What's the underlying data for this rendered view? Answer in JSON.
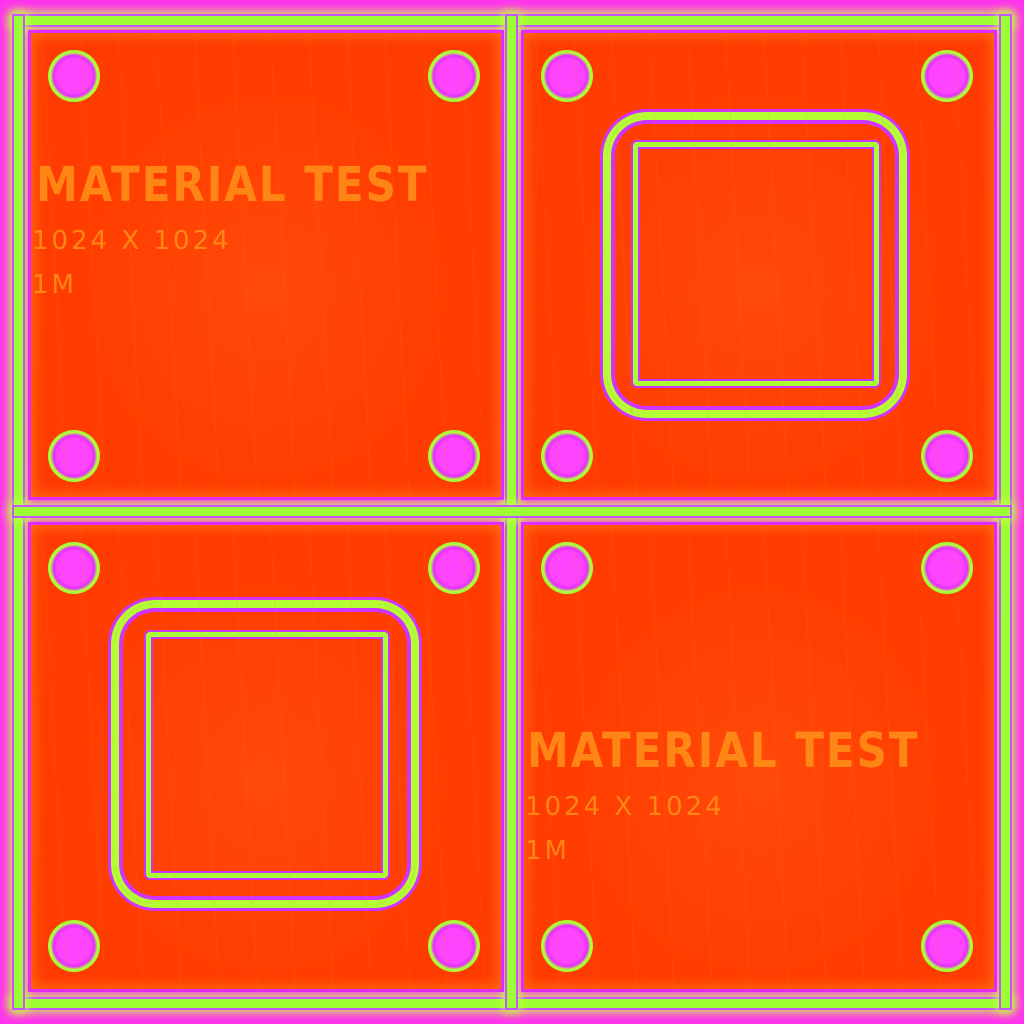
{
  "texture": {
    "labels": [
      {
        "title": "MATERIAL TEST",
        "size": "1024 X 1024",
        "unit": "1M"
      },
      {
        "title": "MATERIAL TEST",
        "size": "1024 X 1024",
        "unit": "1M"
      }
    ]
  },
  "colors": {
    "plate": "#ff3d00",
    "seam": "#9cff33",
    "rivet": "#ff44ff",
    "border": "#ff33ee",
    "text": "#ff9a1a"
  }
}
